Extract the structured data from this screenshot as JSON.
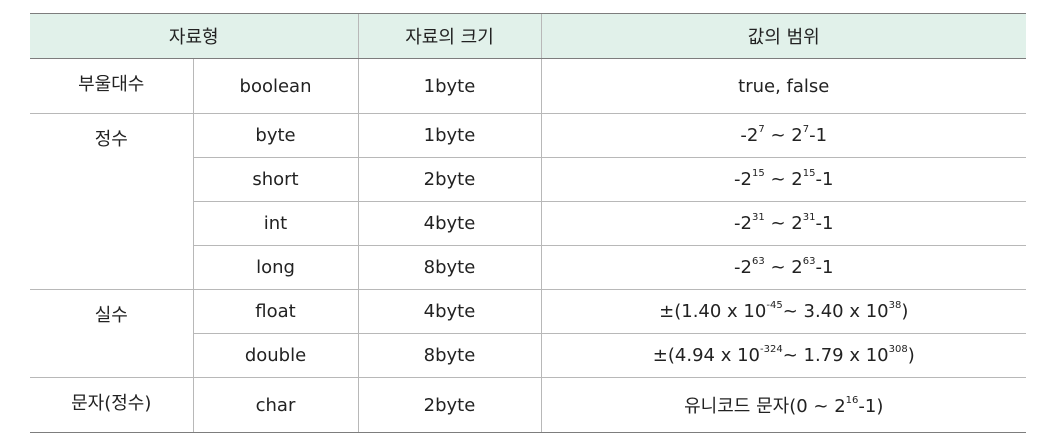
{
  "header": {
    "type": "자료형",
    "size": "자료의 크기",
    "range": "값의 범위"
  },
  "groups": [
    {
      "category": "부울대수",
      "rows": [
        {
          "type": "boolean",
          "size": "1byte",
          "range": {
            "text": "true, false"
          }
        }
      ]
    },
    {
      "category": "정수",
      "rows": [
        {
          "type": "byte",
          "size": "1byte",
          "range": {
            "min_pre": "-2",
            "min_exp": "7",
            "sep": "~",
            "max_pre": "2",
            "max_exp": "7",
            "max_post": "-1"
          }
        },
        {
          "type": "short",
          "size": "2byte",
          "range": {
            "min_pre": "-2",
            "min_exp": "15",
            "sep": "~",
            "max_pre": "2",
            "max_exp": "15",
            "max_post": "-1"
          }
        },
        {
          "type": "int",
          "size": "4byte",
          "range": {
            "min_pre": "-2",
            "min_exp": "31",
            "sep": "~",
            "max_pre": "2",
            "max_exp": "31",
            "max_post": "-1"
          }
        },
        {
          "type": "long",
          "size": "8byte",
          "range": {
            "min_pre": "-2",
            "min_exp": "63",
            "sep": "~",
            "max_pre": "2",
            "max_exp": "63",
            "max_post": "-1"
          }
        }
      ]
    },
    {
      "category": "실수",
      "rows": [
        {
          "type": "float",
          "size": "4byte",
          "range": {
            "pm": "±",
            "min_pre": "(1.40 x 10",
            "min_exp": "-45",
            "sep": "~",
            "max_pre": "3.40 x 10",
            "max_exp": "38",
            "max_post": ")"
          }
        },
        {
          "type": "double",
          "size": "8byte",
          "range": {
            "pm": "±",
            "min_pre": "(4.94 x 10",
            "min_exp": "-324",
            "sep": "~",
            "max_pre": "1.79 x 10",
            "max_exp": "308",
            "max_post": ")"
          }
        }
      ]
    },
    {
      "category": "문자(정수)",
      "rows": [
        {
          "type": "char",
          "size": "2byte",
          "range": {
            "min_pre": "유니코드 문자(0 ~ 2",
            "min_exp": "16",
            "max_post": "-1)"
          }
        }
      ]
    }
  ]
}
